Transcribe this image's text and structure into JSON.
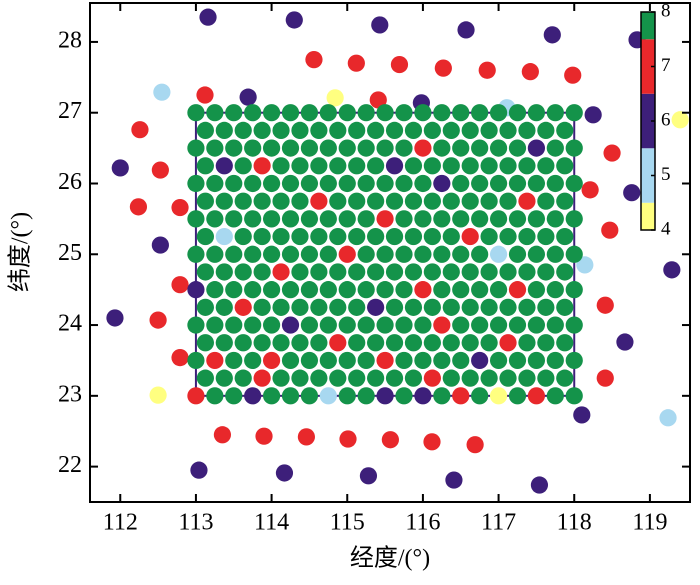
{
  "chart_data": {
    "type": "scatter",
    "xlabel": "经度/(°)",
    "ylabel": "纬度/(°)",
    "xlim": [
      111.6,
      119.53
    ],
    "ylim": [
      21.5,
      28.55
    ],
    "xticks": [
      112,
      113,
      114,
      115,
      116,
      117,
      118,
      119
    ],
    "yticks": [
      22,
      23,
      24,
      25,
      26,
      27,
      28
    ],
    "box": {
      "x": [
        113,
        118
      ],
      "y": [
        23,
        27
      ],
      "color": "#3d1f7a"
    },
    "colorbar": {
      "clim": [
        4,
        8
      ],
      "ticks": [
        4,
        5,
        6,
        7,
        8
      ],
      "colors": [
        "#ffff80",
        "#a8d8f0",
        "#3d1f7a",
        "#e8282b",
        "#14934a"
      ]
    },
    "x": [
      113.16,
      114.3,
      115.43,
      116.57,
      117.71,
      118.83,
      114.56,
      115.12,
      115.69,
      116.27,
      116.85,
      117.42,
      117.98,
      112.55,
      113.12,
      113.69,
      114.84,
      115.41,
      115.98,
      117.11,
      118.25,
      119.4,
      112.26,
      112.0,
      118.5,
      112.53,
      118.21,
      118.76,
      112.24,
      112.79,
      112.53,
      118.47,
      118.14,
      112.79,
      119.29,
      111.93,
      112.5,
      118.41,
      118.67,
      112.79,
      118.41,
      112.5,
      118.1,
      119.24,
      113.35,
      113.9,
      114.46,
      115.01,
      115.57,
      116.12,
      116.69,
      113.04,
      114.17,
      115.28,
      116.41,
      117.54,
      113,
      113.25,
      113.5,
      113.75,
      114,
      114.25,
      114.5,
      114.75,
      115,
      115.25,
      115.5,
      115.75,
      116,
      116.25,
      116.5,
      116.75,
      117,
      117.25,
      117.5,
      117.75,
      118,
      113.125,
      113.375,
      113.625,
      113.875,
      114.125,
      114.375,
      114.625,
      114.875,
      115.125,
      115.375,
      115.625,
      115.875,
      116.125,
      116.375,
      116.625,
      116.875,
      117.125,
      117.375,
      117.625,
      117.875,
      113,
      113.25,
      113.5,
      113.75,
      114,
      114.25,
      114.5,
      114.75,
      115,
      115.25,
      115.5,
      115.75,
      116,
      116.25,
      116.5,
      116.75,
      117,
      117.25,
      117.5,
      117.75,
      118,
      113.125,
      113.375,
      113.625,
      113.875,
      114.125,
      114.375,
      114.625,
      114.875,
      115.125,
      115.375,
      115.625,
      115.875,
      116.125,
      116.375,
      116.625,
      116.875,
      117.125,
      117.375,
      117.625,
      117.875,
      113,
      113.25,
      113.5,
      113.75,
      114,
      114.25,
      114.5,
      114.75,
      115,
      115.25,
      115.5,
      115.75,
      116,
      116.25,
      116.5,
      116.75,
      117,
      117.25,
      117.5,
      117.75,
      118,
      113.125,
      113.375,
      113.625,
      113.875,
      114.125,
      114.375,
      114.625,
      114.875,
      115.125,
      115.375,
      115.625,
      115.875,
      116.125,
      116.375,
      116.625,
      116.875,
      117.125,
      117.375,
      117.625,
      117.875,
      113,
      113.25,
      113.5,
      113.75,
      114,
      114.25,
      114.5,
      114.75,
      115,
      115.25,
      115.5,
      115.75,
      116,
      116.25,
      116.5,
      116.75,
      117,
      117.25,
      117.5,
      117.75,
      118,
      113.125,
      113.375,
      113.625,
      113.875,
      114.125,
      114.375,
      114.625,
      114.875,
      115.125,
      115.375,
      115.625,
      115.875,
      116.125,
      116.375,
      116.625,
      116.875,
      117.125,
      117.375,
      117.625,
      117.875,
      113,
      113.25,
      113.5,
      113.75,
      114,
      114.25,
      114.5,
      114.75,
      115,
      115.25,
      115.5,
      115.75,
      116,
      116.25,
      116.5,
      116.75,
      117,
      117.25,
      117.5,
      117.75,
      118,
      113.125,
      113.375,
      113.625,
      113.875,
      114.125,
      114.375,
      114.625,
      114.875,
      115.125,
      115.375,
      115.625,
      115.875,
      116.125,
      116.375,
      116.625,
      116.875,
      117.125,
      117.375,
      117.625,
      117.875,
      113,
      113.25,
      113.5,
      113.75,
      114,
      114.25,
      114.5,
      114.75,
      115,
      115.25,
      115.5,
      115.75,
      116,
      116.25,
      116.5,
      116.75,
      117,
      117.25,
      117.5,
      117.75,
      118,
      113.125,
      113.375,
      113.625,
      113.875,
      114.125,
      114.375,
      114.625,
      114.875,
      115.125,
      115.375,
      115.625,
      115.875,
      116.125,
      116.375,
      116.625,
      116.875,
      117.125,
      117.375,
      117.625,
      117.875,
      113,
      113.25,
      113.5,
      113.75,
      114,
      114.25,
      114.5,
      114.75,
      115,
      115.25,
      115.5,
      115.75,
      116,
      116.25,
      116.5,
      116.75,
      117,
      117.25,
      117.5,
      117.75,
      118,
      113.125,
      113.375,
      113.625,
      113.875,
      114.125,
      114.375,
      114.625,
      114.875,
      115.125,
      115.375,
      115.625,
      115.875,
      116.125,
      116.375,
      116.625,
      116.875,
      117.125,
      117.375,
      117.625,
      117.875,
      113,
      113.25,
      113.5,
      113.75,
      114,
      114.25,
      114.5,
      114.75,
      115,
      115.25,
      115.5,
      115.75,
      116,
      116.25,
      116.5,
      116.75,
      117,
      117.25,
      117.5,
      117.75,
      118,
      113.125,
      113.375,
      113.625,
      113.875,
      114.125,
      114.375,
      114.625,
      114.875,
      115.125,
      115.375,
      115.625,
      115.875,
      116.125,
      116.375,
      116.625,
      116.875,
      117.125,
      117.375,
      117.625,
      117.875,
      113,
      113.25,
      113.5,
      113.75,
      114,
      114.25,
      114.5,
      114.75,
      115,
      115.25,
      115.5,
      115.75,
      116,
      116.25,
      116.5,
      116.75,
      117,
      117.25,
      117.5,
      117.75,
      118
    ],
    "values": [
      28.35,
      28.31,
      28.24,
      28.17,
      28.1,
      28.03,
      27.75,
      27.7,
      27.68,
      27.63,
      27.6,
      27.58,
      27.53,
      27.29,
      27.25,
      27.22,
      27.21,
      27.18,
      27.14,
      27.07,
      26.97,
      26.9,
      26.76,
      26.22,
      26.43,
      26.19,
      25.91,
      25.87,
      25.67,
      25.66,
      25.13,
      25.34,
      24.85,
      24.57,
      24.78,
      24.1,
      24.07,
      24.28,
      23.76,
      23.54,
      23.25,
      23.01,
      22.73,
      22.69,
      22.45,
      22.43,
      22.42,
      22.39,
      22.38,
      22.35,
      22.31,
      21.95,
      21.91,
      21.87,
      21.81,
      21.74,
      23,
      23,
      23,
      23,
      23,
      23,
      23,
      23,
      23,
      23,
      23,
      23,
      23,
      23,
      23,
      23,
      23,
      23,
      23,
      23,
      23,
      23.25,
      23.25,
      23.25,
      23.25,
      23.25,
      23.25,
      23.25,
      23.25,
      23.25,
      23.25,
      23.25,
      23.25,
      23.25,
      23.25,
      23.25,
      23.25,
      23.25,
      23.25,
      23.25,
      23.25,
      23.5,
      23.5,
      23.5,
      23.5,
      23.5,
      23.5,
      23.5,
      23.5,
      23.5,
      23.5,
      23.5,
      23.5,
      23.5,
      23.5,
      23.5,
      23.5,
      23.5,
      23.5,
      23.5,
      23.5,
      23.5,
      23.75,
      23.75,
      23.75,
      23.75,
      23.75,
      23.75,
      23.75,
      23.75,
      23.75,
      23.75,
      23.75,
      23.75,
      23.75,
      23.75,
      23.75,
      23.75,
      23.75,
      23.75,
      23.75,
      23.75,
      24,
      24,
      24,
      24,
      24,
      24,
      24,
      24,
      24,
      24,
      24,
      24,
      24,
      24,
      24,
      24,
      24,
      24,
      24,
      24,
      24,
      24.25,
      24.25,
      24.25,
      24.25,
      24.25,
      24.25,
      24.25,
      24.25,
      24.25,
      24.25,
      24.25,
      24.25,
      24.25,
      24.25,
      24.25,
      24.25,
      24.25,
      24.25,
      24.25,
      24.25,
      24.5,
      24.5,
      24.5,
      24.5,
      24.5,
      24.5,
      24.5,
      24.5,
      24.5,
      24.5,
      24.5,
      24.5,
      24.5,
      24.5,
      24.5,
      24.5,
      24.5,
      24.5,
      24.5,
      24.5,
      24.5,
      24.75,
      24.75,
      24.75,
      24.75,
      24.75,
      24.75,
      24.75,
      24.75,
      24.75,
      24.75,
      24.75,
      24.75,
      24.75,
      24.75,
      24.75,
      24.75,
      24.75,
      24.75,
      24.75,
      24.75,
      25,
      25,
      25,
      25,
      25,
      25,
      25,
      25,
      25,
      25,
      25,
      25,
      25,
      25,
      25,
      25,
      25,
      25,
      25,
      25,
      25,
      25.25,
      25.25,
      25.25,
      25.25,
      25.25,
      25.25,
      25.25,
      25.25,
      25.25,
      25.25,
      25.25,
      25.25,
      25.25,
      25.25,
      25.25,
      25.25,
      25.25,
      25.25,
      25.25,
      25.25,
      25.5,
      25.5,
      25.5,
      25.5,
      25.5,
      25.5,
      25.5,
      25.5,
      25.5,
      25.5,
      25.5,
      25.5,
      25.5,
      25.5,
      25.5,
      25.5,
      25.5,
      25.5,
      25.5,
      25.5,
      25.5,
      25.75,
      25.75,
      25.75,
      25.75,
      25.75,
      25.75,
      25.75,
      25.75,
      25.75,
      25.75,
      25.75,
      25.75,
      25.75,
      25.75,
      25.75,
      25.75,
      25.75,
      25.75,
      25.75,
      25.75,
      26,
      26,
      26,
      26,
      26,
      26,
      26,
      26,
      26,
      26,
      26,
      26,
      26,
      26,
      26,
      26,
      26,
      26,
      26,
      26,
      26,
      26.25,
      26.25,
      26.25,
      26.25,
      26.25,
      26.25,
      26.25,
      26.25,
      26.25,
      26.25,
      26.25,
      26.25,
      26.25,
      26.25,
      26.25,
      26.25,
      26.25,
      26.25,
      26.25,
      26.25,
      26.5,
      26.5,
      26.5,
      26.5,
      26.5,
      26.5,
      26.5,
      26.5,
      26.5,
      26.5,
      26.5,
      26.5,
      26.5,
      26.5,
      26.5,
      26.5,
      26.5,
      26.5,
      26.5,
      26.5,
      26.5,
      26.75,
      26.75,
      26.75,
      26.75,
      26.75,
      26.75,
      26.75,
      26.75,
      26.75,
      26.75,
      26.75,
      26.75,
      26.75,
      26.75,
      26.75,
      26.75,
      26.75,
      26.75,
      26.75,
      26.75,
      27,
      27,
      27,
      27,
      27,
      27,
      27,
      27,
      27,
      27,
      27,
      27,
      27,
      27,
      27,
      27,
      27,
      27,
      27,
      27,
      27
    ],
    "z": [
      6,
      6,
      6,
      6,
      6,
      6,
      7,
      7,
      7,
      7,
      7,
      7,
      7,
      5,
      7,
      6,
      4,
      7,
      6,
      5,
      6,
      4,
      7,
      6,
      7,
      7,
      7,
      6,
      7,
      7,
      6,
      7,
      5,
      7,
      6,
      6,
      7,
      7,
      6,
      7,
      7,
      4,
      6,
      5,
      7,
      7,
      7,
      7,
      7,
      7,
      7,
      6,
      6,
      6,
      6,
      6,
      7,
      8,
      8,
      6,
      8,
      8,
      8,
      5,
      8,
      8,
      6,
      8,
      6,
      8,
      7,
      8,
      4,
      8,
      7,
      8,
      8,
      8,
      8,
      8,
      7,
      8,
      8,
      8,
      8,
      8,
      8,
      8,
      8,
      7,
      8,
      8,
      8,
      8,
      8,
      8,
      8,
      8,
      7,
      8,
      8,
      7,
      8,
      8,
      8,
      8,
      8,
      7,
      8,
      8,
      8,
      8,
      6,
      8,
      8,
      8,
      8,
      8,
      8,
      8,
      8,
      8,
      8,
      8,
      8,
      7,
      8,
      8,
      8,
      8,
      8,
      8,
      8,
      8,
      7,
      8,
      8,
      8,
      8,
      8,
      8,
      8,
      8,
      6,
      8,
      8,
      8,
      8,
      8,
      8,
      8,
      7,
      8,
      8,
      8,
      8,
      8,
      8,
      8,
      8,
      8,
      7,
      8,
      8,
      8,
      8,
      8,
      8,
      6,
      8,
      8,
      8,
      8,
      8,
      8,
      8,
      8,
      8,
      8,
      6,
      8,
      8,
      8,
      8,
      8,
      8,
      8,
      8,
      8,
      8,
      8,
      7,
      8,
      8,
      8,
      8,
      7,
      8,
      8,
      8,
      8,
      8,
      8,
      8,
      7,
      8,
      8,
      8,
      8,
      8,
      8,
      8,
      8,
      8,
      8,
      8,
      8,
      8,
      8,
      8,
      8,
      8,
      8,
      8,
      8,
      8,
      8,
      8,
      7,
      8,
      8,
      8,
      8,
      8,
      8,
      8,
      5,
      8,
      8,
      8,
      8,
      8,
      5,
      8,
      8,
      8,
      8,
      8,
      8,
      8,
      8,
      8,
      8,
      8,
      8,
      7,
      8,
      8,
      8,
      8,
      8,
      8,
      8,
      8,
      8,
      8,
      8,
      8,
      8,
      8,
      8,
      7,
      8,
      8,
      8,
      8,
      8,
      8,
      8,
      8,
      8,
      8,
      8,
      8,
      8,
      8,
      8,
      8,
      7,
      8,
      8,
      8,
      8,
      8,
      8,
      8,
      8,
      8,
      8,
      7,
      8,
      8,
      8,
      8,
      8,
      8,
      8,
      8,
      8,
      8,
      8,
      8,
      8,
      8,
      8,
      6,
      8,
      8,
      8,
      8,
      8,
      8,
      8,
      8,
      6,
      8,
      7,
      8,
      8,
      8,
      8,
      8,
      8,
      6,
      8,
      8,
      8,
      8,
      8,
      8,
      8,
      8,
      8,
      8,
      8,
      8,
      8,
      8,
      8,
      8,
      8,
      8,
      8,
      8,
      8,
      7,
      8,
      8,
      8,
      8,
      8,
      6,
      8,
      8,
      8,
      8,
      8,
      8,
      8,
      8,
      8,
      8,
      8,
      8,
      8,
      8,
      8,
      8,
      8,
      8,
      8,
      8,
      8,
      8,
      8,
      8,
      8,
      8,
      8,
      8,
      8,
      8,
      8,
      8,
      8,
      8,
      8,
      8,
      8,
      8,
      8,
      8,
      8,
      8,
      8
    ]
  }
}
